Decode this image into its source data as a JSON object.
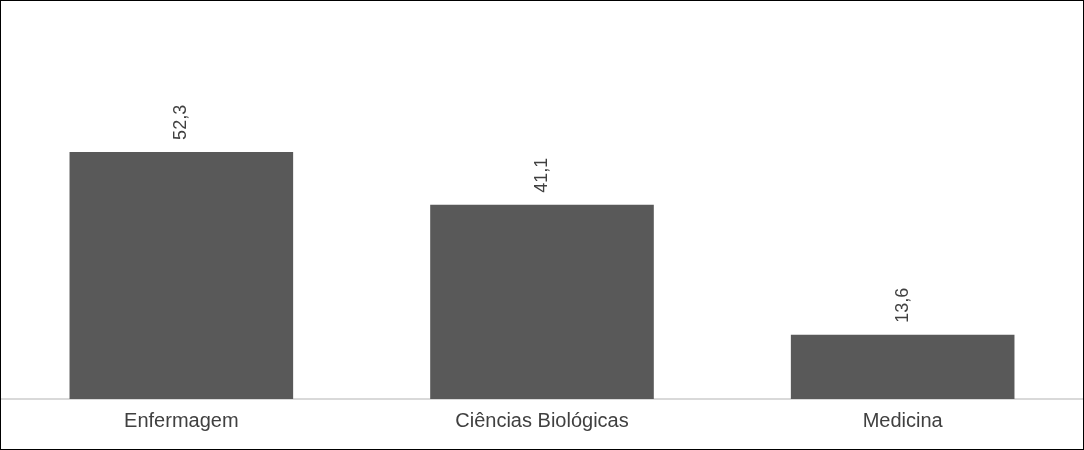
{
  "chart_data": {
    "type": "bar",
    "categories": [
      "Enfermagem",
      "Ciências Biológicas",
      "Medicina"
    ],
    "values": [
      52.3,
      41.1,
      13.6
    ],
    "color": "#595959",
    "value_labels": [
      "52,3",
      "41,1",
      "13,6"
    ],
    "grid": false,
    "legend": false
  }
}
